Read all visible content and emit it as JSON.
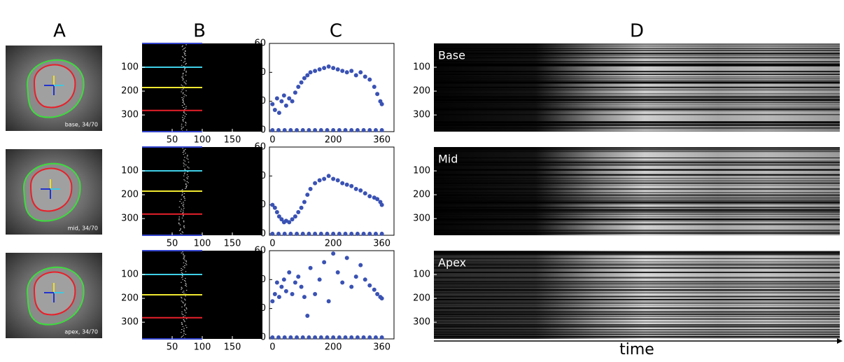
{
  "panel_labels": [
    "A",
    "B",
    "C",
    "D"
  ],
  "mri_captions": [
    "base, 34/70",
    "mid, 34/70",
    "apex, 34/70"
  ],
  "b_axes": {
    "xlim": [
      0,
      200
    ],
    "ylim": [
      0,
      370
    ],
    "xticks": [
      50,
      100,
      150
    ],
    "yticks": [
      100,
      200,
      300
    ]
  },
  "chart_data": [
    {
      "type": "scatter",
      "color": "#3a52b4",
      "xlim": [
        -10,
        400
      ],
      "ylim": [
        -1,
        60
      ],
      "xticks": [
        0,
        200,
        360
      ],
      "yticks": [
        0,
        20,
        40,
        60
      ],
      "x": [
        0,
        8,
        15,
        22,
        30,
        38,
        45,
        55,
        65,
        75,
        85,
        95,
        105,
        115,
        125,
        140,
        155,
        170,
        185,
        200,
        215,
        230,
        245,
        260,
        275,
        290,
        305,
        320,
        335,
        345,
        355,
        360,
        0,
        20,
        40,
        60,
        80,
        100,
        120,
        140,
        160,
        180,
        200,
        220,
        240,
        260,
        280,
        300,
        320,
        340,
        360
      ],
      "values": [
        18,
        14,
        22,
        12,
        20,
        24,
        17,
        22,
        20,
        26,
        30,
        33,
        36,
        38,
        40,
        41,
        42,
        43,
        44,
        43,
        42,
        41,
        40,
        41,
        38,
        40,
        37,
        35,
        30,
        25,
        20,
        18,
        0,
        0,
        0,
        0,
        0,
        0,
        0,
        0,
        0,
        0,
        0,
        0,
        0,
        0,
        0,
        0,
        0,
        0,
        0
      ]
    },
    {
      "type": "scatter",
      "color": "#3a52b4",
      "xlim": [
        -10,
        400
      ],
      "ylim": [
        -1,
        60
      ],
      "xticks": [
        0,
        200,
        360
      ],
      "yticks": [
        0,
        20,
        40,
        60
      ],
      "x": [
        0,
        8,
        15,
        22,
        30,
        38,
        45,
        55,
        65,
        75,
        85,
        95,
        105,
        115,
        125,
        140,
        155,
        170,
        185,
        200,
        215,
        230,
        245,
        260,
        275,
        290,
        305,
        320,
        335,
        345,
        355,
        360,
        0,
        20,
        40,
        60,
        80,
        100,
        120,
        140,
        160,
        180,
        200,
        220,
        240,
        260,
        280,
        300,
        320,
        340,
        360
      ],
      "values": [
        20,
        18,
        15,
        12,
        10,
        8,
        9,
        8,
        10,
        12,
        15,
        18,
        22,
        27,
        31,
        35,
        37,
        38,
        40,
        38,
        37,
        35,
        34,
        33,
        31,
        30,
        28,
        26,
        25,
        24,
        22,
        20,
        0,
        0,
        0,
        0,
        0,
        0,
        0,
        0,
        0,
        0,
        0,
        0,
        0,
        0,
        0,
        0,
        0,
        0,
        0
      ]
    },
    {
      "type": "scatter",
      "color": "#3a52b4",
      "xlim": [
        -10,
        400
      ],
      "ylim": [
        -1,
        60
      ],
      "xticks": [
        0,
        200,
        360
      ],
      "yticks": [
        0,
        20,
        40,
        60
      ],
      "x": [
        0,
        8,
        15,
        22,
        30,
        38,
        45,
        55,
        65,
        75,
        85,
        95,
        105,
        115,
        125,
        140,
        155,
        170,
        185,
        200,
        215,
        230,
        245,
        260,
        275,
        290,
        305,
        320,
        335,
        345,
        355,
        360,
        0,
        20,
        40,
        60,
        80,
        100,
        120,
        140,
        160,
        180,
        200,
        220,
        240,
        260,
        280,
        300,
        320,
        340,
        360
      ],
      "values": [
        25,
        30,
        38,
        28,
        35,
        40,
        32,
        45,
        30,
        38,
        42,
        35,
        28,
        15,
        48,
        30,
        40,
        52,
        25,
        58,
        45,
        38,
        55,
        35,
        42,
        50,
        40,
        36,
        33,
        30,
        28,
        27,
        0,
        0,
        0,
        0,
        0,
        0,
        0,
        0,
        0,
        0,
        0,
        0,
        0,
        0,
        0,
        0,
        0,
        0,
        0
      ]
    }
  ],
  "d_axes": {
    "ylim": [
      0,
      370
    ],
    "yticks": [
      100,
      200,
      300
    ]
  },
  "d_labels": [
    "Base",
    "Mid",
    "Apex"
  ],
  "time_label": "time"
}
